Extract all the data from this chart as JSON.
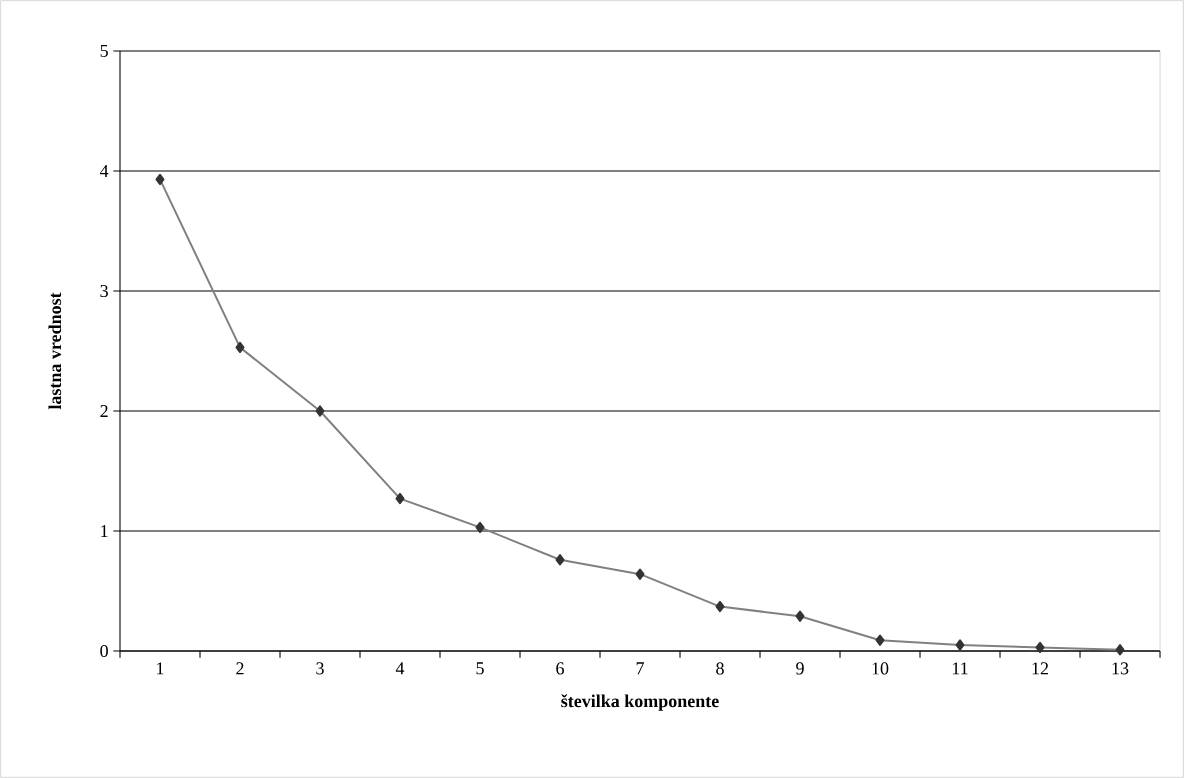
{
  "chart_data": {
    "type": "line",
    "xlabel": "številka komponente",
    "ylabel": "lastna vrednost",
    "categories": [
      "1",
      "2",
      "3",
      "4",
      "5",
      "6",
      "7",
      "8",
      "9",
      "10",
      "11",
      "12",
      "13"
    ],
    "series": [
      {
        "color": "#808080",
        "values": [
          3.93,
          2.53,
          2.0,
          1.27,
          1.03,
          0.76,
          0.64,
          0.37,
          0.29,
          0.09,
          0.05,
          0.03,
          0.01
        ]
      }
    ],
    "ylim": [
      0,
      5
    ],
    "yticks": [
      0,
      1,
      2,
      3,
      4,
      5
    ],
    "grid": "y",
    "marker": "diamond",
    "line_style": "solid"
  }
}
